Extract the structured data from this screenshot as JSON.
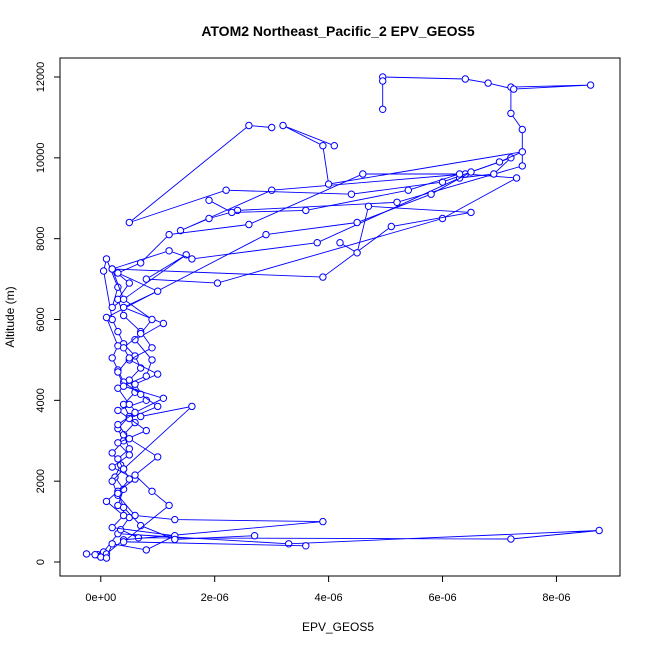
{
  "chart_data": {
    "type": "line",
    "title": "ATOM2 Northeast_Pacific_2 EPV_GEOS5",
    "xlabel": "EPV_GEOS5",
    "ylabel": "Altitude (m)",
    "xlim": [
      -4e-07,
      8.8e-06
    ],
    "ylim": [
      0,
      12000
    ],
    "x_ticks": [
      0,
      2e-06,
      4e-06,
      6e-06,
      8e-06
    ],
    "x_tick_labels": [
      "0e+00",
      "2e-06",
      "4e-06",
      "6e-06",
      "8e-06"
    ],
    "y_ticks": [
      0,
      2000,
      4000,
      6000,
      8000,
      10000,
      12000
    ],
    "y_tick_labels": [
      "0",
      "2000",
      "4000",
      "6000",
      "8000",
      "10000",
      "12000"
    ],
    "grid": false,
    "legend": "none",
    "marker": "open-circle",
    "color": "#0000ff",
    "series": [
      {
        "x": [
          -2.5e-07,
          -5e-08,
          0,
          5e-08,
          3e-07,
          3.3e-06,
          8.75e-06,
          7.2e-06,
          6.6e-07,
          3.5e-07,
          5e-07,
          3e-07,
          4e-07,
          2.5e-07,
          3.5e-07,
          2e-07,
          4e-07,
          3e-07,
          5e-07,
          4e-07,
          6e-07,
          5e-07,
          7e-07,
          6e-07,
          4e-07,
          3e-07,
          2e-07,
          5e-08,
          1e-07,
          3e-07,
          2e-07,
          1.5e-06,
          8e-07,
          2.05e-06,
          6e-06,
          7.3e-06,
          6.4e-06,
          3e-06,
          1.4e-06,
          1.9e-06,
          2.4e-06,
          5.2e-06,
          7.4e-06,
          7.4e-06,
          7.2e-06,
          7.2e-06,
          8.6e-06,
          7.25e-06,
          6.8e-06,
          6.4e-06,
          4.95e-06,
          4.95e-06,
          4.95e-06
        ],
        "y": [
          200,
          180,
          150,
          250,
          700,
          450,
          780,
          570,
          600,
          800,
          1100,
          1400,
          1800,
          2100,
          2400,
          2700,
          3000,
          3300,
          3600,
          3900,
          4200,
          4500,
          4800,
          5100,
          5400,
          5700,
          6000,
          7200,
          7500,
          6800,
          6300,
          7600,
          7000,
          6900,
          8500,
          9500,
          9600,
          9200,
          8200,
          8500,
          8700,
          8900,
          9800,
          10700,
          11100,
          11750,
          11800,
          11700,
          11850,
          11950,
          12000,
          11900,
          11200
        ]
      },
      {
        "x": [
          -1e-07,
          0,
          1e-07,
          4e-07,
          3.9e-06,
          1.3e-06,
          6e-07,
          3e-07,
          2e-07,
          4e-07,
          3e-07,
          5e-07,
          4e-07,
          6e-07,
          3e-07,
          8e-07,
          6e-07,
          1e-06,
          5e-07,
          9e-07,
          7e-07,
          4e-07,
          3e-07,
          5e-07,
          2e-07,
          1.2e-06,
          1.6e-06,
          3.8e-06,
          6.3e-06,
          6.9e-06,
          7.2e-06,
          6e-06,
          4.4e-06,
          2.2e-06,
          5e-07,
          2.6e-06,
          3e-06
        ],
        "y": [
          180,
          120,
          200,
          550,
          1000,
          1050,
          1150,
          1650,
          2000,
          2300,
          2550,
          2800,
          3150,
          3450,
          3750,
          4000,
          4400,
          4650,
          5000,
          5300,
          5700,
          6100,
          6500,
          6900,
          7250,
          7700,
          7500,
          7900,
          9500,
          9600,
          10000,
          9400,
          9100,
          9200,
          8400,
          10800,
          10750
        ]
      },
      {
        "x": [
          1e-07,
          2e-07,
          8e-07,
          1.3e-06,
          2e-07,
          4e-07,
          1e-07,
          3e-07,
          6e-07,
          2e-07,
          5e-07,
          3e-07,
          8e-07,
          5e-07,
          1e-06,
          7e-07,
          4e-07,
          3e-07,
          2e-07,
          3e-07,
          1e-07,
          2.9e-06,
          4.5e-06,
          5.8e-06,
          6.5e-06,
          7e-06,
          7.4e-06,
          4e-06,
          3.9e-06,
          3.2e-06,
          4.1e-06
        ],
        "y": [
          100,
          450,
          300,
          650,
          850,
          1150,
          1500,
          1750,
          2050,
          2350,
          2650,
          2950,
          3250,
          3550,
          3850,
          4150,
          4450,
          4750,
          5050,
          5350,
          6050,
          8100,
          8400,
          9100,
          9650,
          9900,
          10150,
          9350,
          10300,
          10800,
          10300
        ]
      },
      {
        "x": [
          2.7e-06,
          1.3e-06,
          7e-07,
          4e-07,
          3e-07,
          5e-07,
          4e-07,
          1.6e-06,
          7e-07,
          5e-07,
          3e-07,
          8e-07,
          9e-07,
          6e-07,
          1.1e-06,
          4e-07,
          1e-06,
          3e-07,
          7e-07,
          1.2e-06,
          2.6e-06,
          4.6e-06,
          6.3e-06,
          5.4e-06,
          3.6e-06,
          2.3e-06,
          1.9e-06
        ],
        "y": [
          650,
          560,
          900,
          1350,
          1700,
          2050,
          2300,
          3850,
          3600,
          3900,
          4300,
          4600,
          5000,
          5500,
          5900,
          6300,
          6700,
          7150,
          7400,
          8100,
          8350,
          9600,
          9600,
          9200,
          8700,
          8650,
          8950
        ]
      },
      {
        "x": [
          3.6e-06,
          4e-07,
          1.2e-06,
          9e-07,
          6e-07,
          1e-06,
          5e-07,
          3e-07,
          6e-07,
          1.1e-06,
          4e-07,
          3e-07,
          5e-07,
          4e-07,
          7e-07,
          9e-07,
          4e-07,
          2e-07,
          3.9e-06,
          5.1e-06,
          6.5e-06,
          4.7e-06,
          4.5e-06,
          4.2e-06
        ],
        "y": [
          400,
          500,
          1400,
          1750,
          2150,
          2600,
          3050,
          3400,
          3700,
          4050,
          4350,
          4700,
          5050,
          5300,
          5650,
          6000,
          6500,
          7250,
          7050,
          8300,
          8650,
          8800,
          7650,
          7900
        ]
      }
    ]
  }
}
